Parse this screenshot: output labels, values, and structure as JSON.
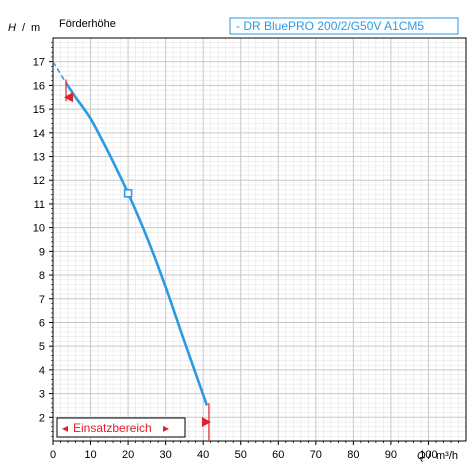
{
  "chart_data": {
    "type": "line",
    "title": "Förderhöhe",
    "xlabel": "Q",
    "xunit": "m³/h",
    "ylabel": "H",
    "yunit": "m",
    "xlim": [
      0,
      110
    ],
    "ylim": [
      1,
      18
    ],
    "x_ticks": [
      0,
      10,
      20,
      30,
      40,
      50,
      60,
      70,
      80,
      90,
      100
    ],
    "y_ticks": [
      2,
      3,
      4,
      5,
      6,
      7,
      8,
      9,
      10,
      11,
      12,
      13,
      14,
      15,
      16,
      17
    ],
    "minor_grid": true,
    "series": [
      {
        "name": "- DR BluePRO 200/2/G50V A1CM5",
        "x": [
          3.5,
          6,
          10,
          15,
          20,
          25,
          30,
          35,
          41
        ],
        "y": [
          16.1,
          15.5,
          14.6,
          13.1,
          11.45,
          9.6,
          7.5,
          5.2,
          2.5
        ]
      }
    ],
    "extrapolated": {
      "x": [
        0,
        3.5
      ],
      "y": [
        17.0,
        16.1
      ]
    },
    "operating_point": {
      "x": 20,
      "y": 11.45
    },
    "range_markers": [
      {
        "x": 4,
        "y": 15.5,
        "direction": "left"
      },
      {
        "x": 41,
        "y": 1.8,
        "direction": "right"
      }
    ],
    "operating_range_label": "Einsatzbereich",
    "range_box_arrows": [
      "◂",
      "▸"
    ],
    "colors": {
      "curve": "#2a9ae2",
      "marker": "#e0202a",
      "grid": "#c8c8c8",
      "axis": "#000000"
    },
    "legend_position": "top-right"
  }
}
